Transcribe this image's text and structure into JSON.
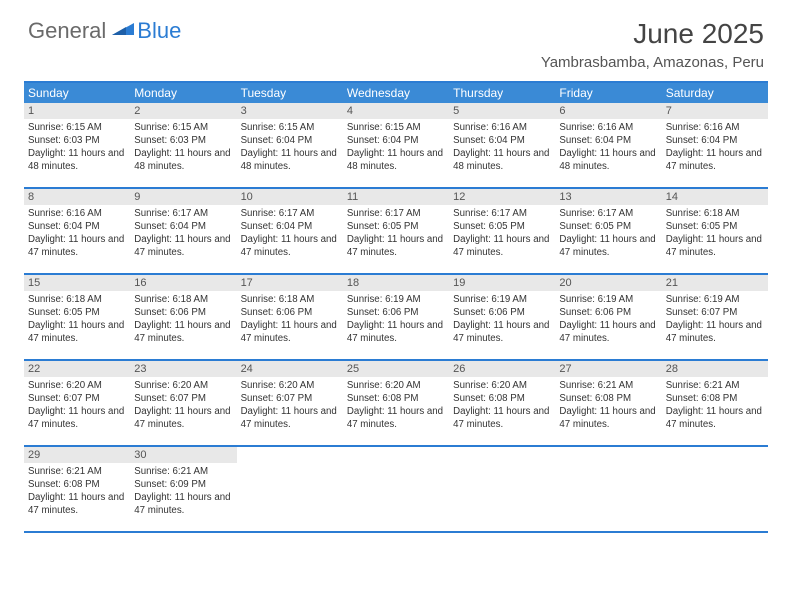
{
  "logo": {
    "general": "General",
    "blue": "Blue"
  },
  "title": "June 2025",
  "location": "Yambrasbamba, Amazonas, Peru",
  "colors": {
    "header_bar": "#3a8ad6",
    "divider": "#2b7cd3",
    "daynum_bg": "#e8e8e8",
    "text": "#333333",
    "logo_gray": "#6a6a6a",
    "logo_blue": "#2b7cd3"
  },
  "weekdays": [
    "Sunday",
    "Monday",
    "Tuesday",
    "Wednesday",
    "Thursday",
    "Friday",
    "Saturday"
  ],
  "weeks": [
    [
      {
        "num": "1",
        "sunrise": "Sunrise: 6:15 AM",
        "sunset": "Sunset: 6:03 PM",
        "daylight": "Daylight: 11 hours and 48 minutes."
      },
      {
        "num": "2",
        "sunrise": "Sunrise: 6:15 AM",
        "sunset": "Sunset: 6:03 PM",
        "daylight": "Daylight: 11 hours and 48 minutes."
      },
      {
        "num": "3",
        "sunrise": "Sunrise: 6:15 AM",
        "sunset": "Sunset: 6:04 PM",
        "daylight": "Daylight: 11 hours and 48 minutes."
      },
      {
        "num": "4",
        "sunrise": "Sunrise: 6:15 AM",
        "sunset": "Sunset: 6:04 PM",
        "daylight": "Daylight: 11 hours and 48 minutes."
      },
      {
        "num": "5",
        "sunrise": "Sunrise: 6:16 AM",
        "sunset": "Sunset: 6:04 PM",
        "daylight": "Daylight: 11 hours and 48 minutes."
      },
      {
        "num": "6",
        "sunrise": "Sunrise: 6:16 AM",
        "sunset": "Sunset: 6:04 PM",
        "daylight": "Daylight: 11 hours and 48 minutes."
      },
      {
        "num": "7",
        "sunrise": "Sunrise: 6:16 AM",
        "sunset": "Sunset: 6:04 PM",
        "daylight": "Daylight: 11 hours and 47 minutes."
      }
    ],
    [
      {
        "num": "8",
        "sunrise": "Sunrise: 6:16 AM",
        "sunset": "Sunset: 6:04 PM",
        "daylight": "Daylight: 11 hours and 47 minutes."
      },
      {
        "num": "9",
        "sunrise": "Sunrise: 6:17 AM",
        "sunset": "Sunset: 6:04 PM",
        "daylight": "Daylight: 11 hours and 47 minutes."
      },
      {
        "num": "10",
        "sunrise": "Sunrise: 6:17 AM",
        "sunset": "Sunset: 6:04 PM",
        "daylight": "Daylight: 11 hours and 47 minutes."
      },
      {
        "num": "11",
        "sunrise": "Sunrise: 6:17 AM",
        "sunset": "Sunset: 6:05 PM",
        "daylight": "Daylight: 11 hours and 47 minutes."
      },
      {
        "num": "12",
        "sunrise": "Sunrise: 6:17 AM",
        "sunset": "Sunset: 6:05 PM",
        "daylight": "Daylight: 11 hours and 47 minutes."
      },
      {
        "num": "13",
        "sunrise": "Sunrise: 6:17 AM",
        "sunset": "Sunset: 6:05 PM",
        "daylight": "Daylight: 11 hours and 47 minutes."
      },
      {
        "num": "14",
        "sunrise": "Sunrise: 6:18 AM",
        "sunset": "Sunset: 6:05 PM",
        "daylight": "Daylight: 11 hours and 47 minutes."
      }
    ],
    [
      {
        "num": "15",
        "sunrise": "Sunrise: 6:18 AM",
        "sunset": "Sunset: 6:05 PM",
        "daylight": "Daylight: 11 hours and 47 minutes."
      },
      {
        "num": "16",
        "sunrise": "Sunrise: 6:18 AM",
        "sunset": "Sunset: 6:06 PM",
        "daylight": "Daylight: 11 hours and 47 minutes."
      },
      {
        "num": "17",
        "sunrise": "Sunrise: 6:18 AM",
        "sunset": "Sunset: 6:06 PM",
        "daylight": "Daylight: 11 hours and 47 minutes."
      },
      {
        "num": "18",
        "sunrise": "Sunrise: 6:19 AM",
        "sunset": "Sunset: 6:06 PM",
        "daylight": "Daylight: 11 hours and 47 minutes."
      },
      {
        "num": "19",
        "sunrise": "Sunrise: 6:19 AM",
        "sunset": "Sunset: 6:06 PM",
        "daylight": "Daylight: 11 hours and 47 minutes."
      },
      {
        "num": "20",
        "sunrise": "Sunrise: 6:19 AM",
        "sunset": "Sunset: 6:06 PM",
        "daylight": "Daylight: 11 hours and 47 minutes."
      },
      {
        "num": "21",
        "sunrise": "Sunrise: 6:19 AM",
        "sunset": "Sunset: 6:07 PM",
        "daylight": "Daylight: 11 hours and 47 minutes."
      }
    ],
    [
      {
        "num": "22",
        "sunrise": "Sunrise: 6:20 AM",
        "sunset": "Sunset: 6:07 PM",
        "daylight": "Daylight: 11 hours and 47 minutes."
      },
      {
        "num": "23",
        "sunrise": "Sunrise: 6:20 AM",
        "sunset": "Sunset: 6:07 PM",
        "daylight": "Daylight: 11 hours and 47 minutes."
      },
      {
        "num": "24",
        "sunrise": "Sunrise: 6:20 AM",
        "sunset": "Sunset: 6:07 PM",
        "daylight": "Daylight: 11 hours and 47 minutes."
      },
      {
        "num": "25",
        "sunrise": "Sunrise: 6:20 AM",
        "sunset": "Sunset: 6:08 PM",
        "daylight": "Daylight: 11 hours and 47 minutes."
      },
      {
        "num": "26",
        "sunrise": "Sunrise: 6:20 AM",
        "sunset": "Sunset: 6:08 PM",
        "daylight": "Daylight: 11 hours and 47 minutes."
      },
      {
        "num": "27",
        "sunrise": "Sunrise: 6:21 AM",
        "sunset": "Sunset: 6:08 PM",
        "daylight": "Daylight: 11 hours and 47 minutes."
      },
      {
        "num": "28",
        "sunrise": "Sunrise: 6:21 AM",
        "sunset": "Sunset: 6:08 PM",
        "daylight": "Daylight: 11 hours and 47 minutes."
      }
    ],
    [
      {
        "num": "29",
        "sunrise": "Sunrise: 6:21 AM",
        "sunset": "Sunset: 6:08 PM",
        "daylight": "Daylight: 11 hours and 47 minutes."
      },
      {
        "num": "30",
        "sunrise": "Sunrise: 6:21 AM",
        "sunset": "Sunset: 6:09 PM",
        "daylight": "Daylight: 11 hours and 47 minutes."
      },
      null,
      null,
      null,
      null,
      null
    ]
  ]
}
